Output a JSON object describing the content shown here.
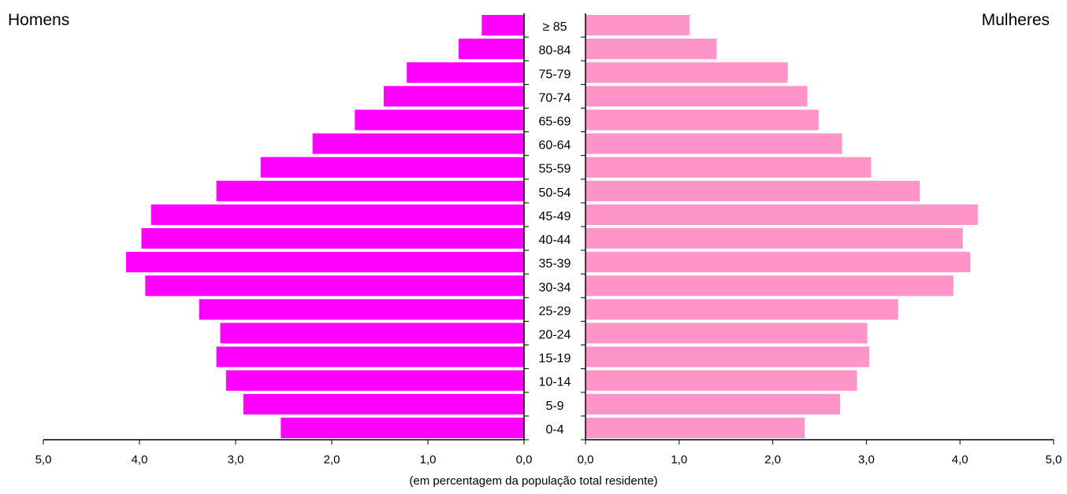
{
  "chart_data": {
    "type": "bar",
    "subtype": "population-pyramid",
    "left_label": "Homens",
    "right_label": "Mulheres",
    "xlabel": "(em percentagem da população total residente)",
    "xlim": [
      0,
      5
    ],
    "x_ticks": [
      "0,0",
      "1,0",
      "2,0",
      "3,0",
      "4,0",
      "5,0"
    ],
    "categories": [
      "0-4",
      "5-9",
      "10-14",
      "15-19",
      "20-24",
      "25-29",
      "30-34",
      "35-39",
      "40-44",
      "45-49",
      "50-54",
      "55-59",
      "60-64",
      "65-69",
      "70-74",
      "75-79",
      "80-84",
      "≥ 85"
    ],
    "series": [
      {
        "name": "Homens",
        "color": "#ff00ff",
        "values": [
          2.53,
          2.92,
          3.1,
          3.2,
          3.16,
          3.38,
          3.94,
          4.14,
          3.98,
          3.88,
          3.2,
          2.74,
          2.2,
          1.76,
          1.46,
          1.22,
          0.68,
          0.44
        ]
      },
      {
        "name": "Mulheres",
        "color": "#ff94c8",
        "values": [
          2.34,
          2.72,
          2.9,
          3.03,
          3.01,
          3.34,
          3.93,
          4.11,
          4.03,
          4.19,
          3.57,
          3.05,
          2.74,
          2.49,
          2.37,
          2.16,
          1.4,
          1.11
        ]
      }
    ],
    "grid": false,
    "legend": "none"
  }
}
